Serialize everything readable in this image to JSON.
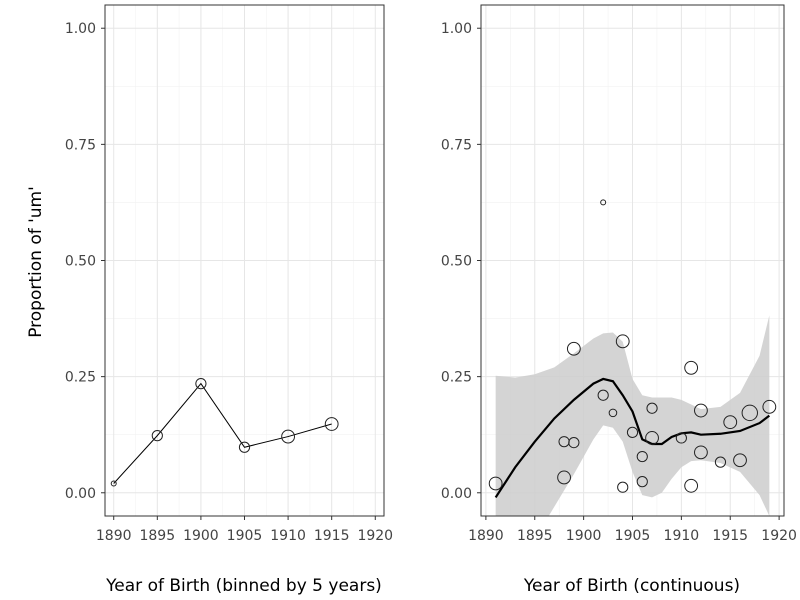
{
  "ylabel": "Proportion of 'um'",
  "chart_data": [
    {
      "type": "line",
      "title": "",
      "xlabel": "Year of Birth (binned by 5 years)",
      "ylabel": "Proportion of 'um'",
      "xlim": [
        1889,
        1921
      ],
      "ylim": [
        -0.05,
        1.05
      ],
      "x_ticks": [
        1890,
        1895,
        1900,
        1905,
        1910,
        1915,
        1920
      ],
      "y_ticks": [
        0.0,
        0.25,
        0.5,
        0.75,
        1.0
      ],
      "y_tick_labels": [
        "0.00",
        "0.25",
        "0.50",
        "0.75",
        "1.00"
      ],
      "grid": true,
      "series": [
        {
          "points": [
            {
              "x": 1890,
              "y": 0.02,
              "size": 1
            },
            {
              "x": 1895,
              "y": 0.123,
              "size": 3
            },
            {
              "x": 1900,
              "y": 0.235,
              "size": 3
            },
            {
              "x": 1905,
              "y": 0.098,
              "size": 3
            },
            {
              "x": 1910,
              "y": 0.121,
              "size": 4
            },
            {
              "x": 1915,
              "y": 0.148,
              "size": 4
            }
          ]
        }
      ]
    },
    {
      "type": "scatter",
      "title": "",
      "xlabel": "Year of Birth (continuous)",
      "ylabel": "Proportion of 'um'",
      "xlim": [
        1889.5,
        1920.5
      ],
      "ylim": [
        -0.05,
        1.05
      ],
      "x_ticks": [
        1890,
        1895,
        1900,
        1905,
        1910,
        1915,
        1920
      ],
      "y_ticks": [
        0.0,
        0.25,
        0.5,
        0.75,
        1.0
      ],
      "y_tick_labels": [
        "0.00",
        "0.25",
        "0.50",
        "0.75",
        "1.00"
      ],
      "grid": true,
      "points": [
        {
          "x": 1891,
          "y": 0.02,
          "size": 4
        },
        {
          "x": 1898,
          "y": 0.11,
          "size": 3
        },
        {
          "x": 1898,
          "y": 0.033,
          "size": 4
        },
        {
          "x": 1899,
          "y": 0.31,
          "size": 4
        },
        {
          "x": 1899,
          "y": 0.108,
          "size": 3
        },
        {
          "x": 1902,
          "y": 0.625,
          "size": 1
        },
        {
          "x": 1902,
          "y": 0.21,
          "size": 3
        },
        {
          "x": 1903,
          "y": 0.172,
          "size": 2
        },
        {
          "x": 1904,
          "y": 0.326,
          "size": 4
        },
        {
          "x": 1904,
          "y": 0.012,
          "size": 3
        },
        {
          "x": 1905,
          "y": 0.13,
          "size": 3
        },
        {
          "x": 1906,
          "y": 0.078,
          "size": 3
        },
        {
          "x": 1906,
          "y": 0.024,
          "size": 3
        },
        {
          "x": 1907,
          "y": 0.182,
          "size": 3
        },
        {
          "x": 1907,
          "y": 0.118,
          "size": 4
        },
        {
          "x": 1910,
          "y": 0.118,
          "size": 3
        },
        {
          "x": 1911,
          "y": 0.269,
          "size": 4
        },
        {
          "x": 1911,
          "y": 0.015,
          "size": 4
        },
        {
          "x": 1912,
          "y": 0.177,
          "size": 4
        },
        {
          "x": 1912,
          "y": 0.087,
          "size": 4
        },
        {
          "x": 1914,
          "y": 0.066,
          "size": 3
        },
        {
          "x": 1915,
          "y": 0.152,
          "size": 4
        },
        {
          "x": 1916,
          "y": 0.07,
          "size": 4
        },
        {
          "x": 1917,
          "y": 0.172,
          "size": 5
        },
        {
          "x": 1919,
          "y": 0.185,
          "size": 4
        }
      ],
      "smooth": {
        "x": [
          1891,
          1893,
          1895,
          1897,
          1899,
          1901,
          1902,
          1903,
          1904,
          1905,
          1906,
          1907,
          1908,
          1909,
          1910,
          1911,
          1912,
          1914,
          1916,
          1918,
          1919
        ],
        "y": [
          -0.01,
          0.055,
          0.11,
          0.16,
          0.2,
          0.235,
          0.245,
          0.24,
          0.21,
          0.175,
          0.115,
          0.105,
          0.105,
          0.12,
          0.128,
          0.13,
          0.125,
          0.127,
          0.133,
          0.15,
          0.166
        ],
        "lower": [
          -0.235,
          -0.16,
          -0.1,
          -0.03,
          0.04,
          0.115,
          0.145,
          0.14,
          0.11,
          0.045,
          -0.005,
          -0.01,
          0.0,
          0.03,
          0.055,
          0.068,
          0.07,
          0.064,
          0.045,
          -0.005,
          -0.05
        ],
        "upper": [
          0.252,
          0.248,
          0.255,
          0.27,
          0.3,
          0.332,
          0.343,
          0.345,
          0.325,
          0.245,
          0.21,
          0.205,
          0.205,
          0.205,
          0.2,
          0.19,
          0.18,
          0.185,
          0.215,
          0.295,
          0.382
        ]
      }
    }
  ]
}
